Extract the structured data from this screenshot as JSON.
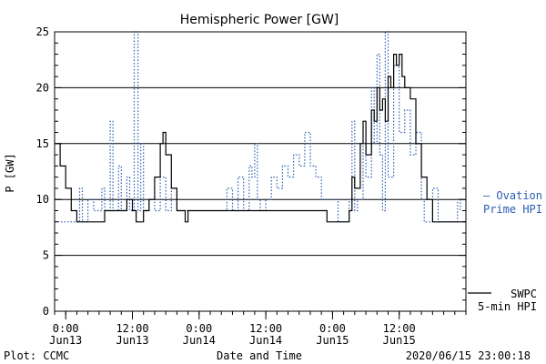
{
  "chart_data": {
    "type": "line",
    "title": "Hemispheric Power [GW]",
    "xlabel": "Date and Time",
    "ylabel": "P [GW]",
    "ylim": [
      0,
      25
    ],
    "yticks": [
      0,
      5,
      10,
      15,
      20,
      25
    ],
    "xlim": [
      "2020-06-12 22:00",
      "2020-06-16 00:00"
    ],
    "xticks": [
      {
        "time": "2020-06-13 00:00",
        "hour": "0:00",
        "day": "Jun13"
      },
      {
        "time": "2020-06-13 12:00",
        "hour": "12:00",
        "day": "Jun13"
      },
      {
        "time": "2020-06-14 00:00",
        "hour": "0:00",
        "day": "Jun14"
      },
      {
        "time": "2020-06-14 12:00",
        "hour": "12:00",
        "day": "Jun14"
      },
      {
        "time": "2020-06-15 00:00",
        "hour": "0:00",
        "day": "Jun15"
      },
      {
        "time": "2020-06-15 12:00",
        "hour": "12:00",
        "day": "Jun15"
      }
    ],
    "grid": true,
    "footer_left": "Plot: CCMC",
    "footer_right": "2020/06/15 23:00:18",
    "series": [
      {
        "name": "Ovation Prime HPI",
        "label_lines": [
          "— Ovation",
          "Prime HPI"
        ],
        "color": "#2a5db0",
        "style": "dotted",
        "points": [
          [
            "2020-06-12 22:00",
            8
          ],
          [
            "2020-06-13 02:00",
            8
          ],
          [
            "2020-06-13 02:30",
            11
          ],
          [
            "2020-06-13 03:00",
            8
          ],
          [
            "2020-06-13 04:00",
            10
          ],
          [
            "2020-06-13 05:00",
            9
          ],
          [
            "2020-06-13 06:30",
            11
          ],
          [
            "2020-06-13 07:00",
            9
          ],
          [
            "2020-06-13 08:00",
            17
          ],
          [
            "2020-06-13 08:30",
            9
          ],
          [
            "2020-06-13 09:30",
            13
          ],
          [
            "2020-06-13 10:00",
            9
          ],
          [
            "2020-06-13 11:00",
            12
          ],
          [
            "2020-06-13 11:30",
            9
          ],
          [
            "2020-06-13 12:20",
            25
          ],
          [
            "2020-06-13 13:00",
            9
          ],
          [
            "2020-06-13 13:30",
            15
          ],
          [
            "2020-06-13 14:00",
            9
          ],
          [
            "2020-06-13 15:00",
            10
          ],
          [
            "2020-06-13 16:00",
            9
          ],
          [
            "2020-06-13 17:00",
            12
          ],
          [
            "2020-06-13 18:00",
            9
          ],
          [
            "2020-06-13 19:00",
            11
          ],
          [
            "2020-06-13 20:00",
            9
          ],
          [
            "2020-06-14 04:00",
            9
          ],
          [
            "2020-06-14 05:00",
            11
          ],
          [
            "2020-06-14 06:00",
            9
          ],
          [
            "2020-06-14 07:00",
            12
          ],
          [
            "2020-06-14 08:00",
            9
          ],
          [
            "2020-06-14 09:00",
            13
          ],
          [
            "2020-06-14 09:30",
            12
          ],
          [
            "2020-06-14 10:00",
            15
          ],
          [
            "2020-06-14 10:30",
            10
          ],
          [
            "2020-06-14 11:00",
            9
          ],
          [
            "2020-06-14 12:00",
            10
          ],
          [
            "2020-06-14 13:00",
            12
          ],
          [
            "2020-06-14 14:00",
            11
          ],
          [
            "2020-06-14 15:00",
            13
          ],
          [
            "2020-06-14 16:00",
            12
          ],
          [
            "2020-06-14 17:00",
            14
          ],
          [
            "2020-06-14 18:00",
            13
          ],
          [
            "2020-06-14 19:00",
            16
          ],
          [
            "2020-06-14 20:00",
            13
          ],
          [
            "2020-06-14 21:00",
            12
          ],
          [
            "2020-06-14 22:00",
            10
          ],
          [
            "2020-06-15 01:00",
            8
          ],
          [
            "2020-06-15 03:00",
            10
          ],
          [
            "2020-06-15 03:30",
            17
          ],
          [
            "2020-06-15 04:00",
            9
          ],
          [
            "2020-06-15 04:30",
            10
          ],
          [
            "2020-06-15 05:30",
            15
          ],
          [
            "2020-06-15 06:00",
            12
          ],
          [
            "2020-06-15 07:00",
            20
          ],
          [
            "2020-06-15 07:30",
            15
          ],
          [
            "2020-06-15 08:00",
            23
          ],
          [
            "2020-06-15 08:30",
            14
          ],
          [
            "2020-06-15 09:00",
            9
          ],
          [
            "2020-06-15 09:30",
            25
          ],
          [
            "2020-06-15 10:00",
            12
          ],
          [
            "2020-06-15 11:00",
            22
          ],
          [
            "2020-06-15 12:00",
            16
          ],
          [
            "2020-06-15 13:00",
            18
          ],
          [
            "2020-06-15 14:00",
            14
          ],
          [
            "2020-06-15 15:00",
            16
          ],
          [
            "2020-06-15 16:00",
            10
          ],
          [
            "2020-06-15 16:30",
            8
          ],
          [
            "2020-06-15 17:30",
            8
          ],
          [
            "2020-06-15 18:00",
            11
          ],
          [
            "2020-06-15 19:00",
            8
          ],
          [
            "2020-06-15 22:00",
            8
          ],
          [
            "2020-06-15 22:30",
            10
          ],
          [
            "2020-06-15 23:00",
            9
          ]
        ]
      },
      {
        "name": "SWPC 5-min HPI",
        "label_lines": [
          "SWPC",
          "5-min HPI"
        ],
        "color": "#000000",
        "style": "solid",
        "points": [
          [
            "2020-06-12 22:00",
            15
          ],
          [
            "2020-06-12 23:00",
            13
          ],
          [
            "2020-06-13 00:00",
            11
          ],
          [
            "2020-06-13 01:00",
            9
          ],
          [
            "2020-06-13 02:00",
            8
          ],
          [
            "2020-06-13 06:00",
            8
          ],
          [
            "2020-06-13 07:00",
            9
          ],
          [
            "2020-06-13 10:00",
            9
          ],
          [
            "2020-06-13 11:00",
            10
          ],
          [
            "2020-06-13 12:00",
            9
          ],
          [
            "2020-06-13 12:40",
            8
          ],
          [
            "2020-06-13 14:00",
            9
          ],
          [
            "2020-06-13 15:00",
            10
          ],
          [
            "2020-06-13 16:00",
            12
          ],
          [
            "2020-06-13 17:00",
            15
          ],
          [
            "2020-06-13 17:30",
            16
          ],
          [
            "2020-06-13 18:00",
            14
          ],
          [
            "2020-06-13 19:00",
            11
          ],
          [
            "2020-06-13 20:00",
            9
          ],
          [
            "2020-06-13 21:00",
            9
          ],
          [
            "2020-06-13 21:30",
            8
          ],
          [
            "2020-06-13 22:00",
            9
          ],
          [
            "2020-06-14 22:00",
            9
          ],
          [
            "2020-06-14 23:00",
            8
          ],
          [
            "2020-06-15 02:00",
            8
          ],
          [
            "2020-06-15 03:00",
            9
          ],
          [
            "2020-06-15 03:30",
            12
          ],
          [
            "2020-06-15 04:00",
            11
          ],
          [
            "2020-06-15 05:00",
            15
          ],
          [
            "2020-06-15 05:30",
            17
          ],
          [
            "2020-06-15 06:00",
            14
          ],
          [
            "2020-06-15 07:00",
            18
          ],
          [
            "2020-06-15 07:30",
            17
          ],
          [
            "2020-06-15 08:00",
            20
          ],
          [
            "2020-06-15 08:30",
            18
          ],
          [
            "2020-06-15 09:00",
            19
          ],
          [
            "2020-06-15 09:30",
            17
          ],
          [
            "2020-06-15 10:00",
            21
          ],
          [
            "2020-06-15 10:30",
            20
          ],
          [
            "2020-06-15 11:00",
            23
          ],
          [
            "2020-06-15 11:30",
            22
          ],
          [
            "2020-06-15 12:00",
            23
          ],
          [
            "2020-06-15 12:30",
            21
          ],
          [
            "2020-06-15 13:00",
            20
          ],
          [
            "2020-06-15 14:00",
            19
          ],
          [
            "2020-06-15 15:00",
            15
          ],
          [
            "2020-06-15 16:00",
            12
          ],
          [
            "2020-06-15 17:00",
            10
          ],
          [
            "2020-06-15 18:00",
            8
          ],
          [
            "2020-06-16 00:00",
            8
          ]
        ]
      }
    ]
  }
}
